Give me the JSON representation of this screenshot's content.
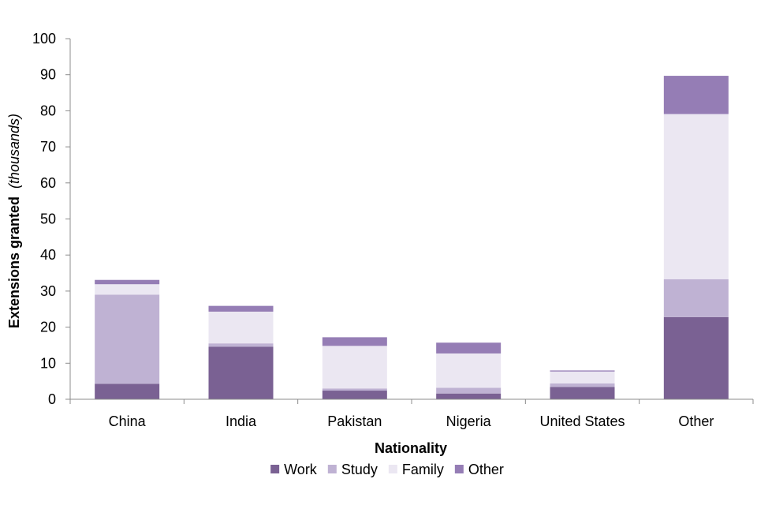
{
  "chart_data": {
    "type": "bar",
    "stacked": true,
    "categories": [
      "China",
      "India",
      "Pakistan",
      "Nigeria",
      "United States",
      "Other"
    ],
    "series": [
      {
        "name": "Work",
        "color": "#7a6193",
        "values": [
          4.3,
          14.6,
          2.4,
          1.6,
          3.4,
          22.8
        ]
      },
      {
        "name": "Study",
        "color": "#bfb2d3",
        "values": [
          24.7,
          0.9,
          0.6,
          1.6,
          1.0,
          10.5
        ]
      },
      {
        "name": "Family",
        "color": "#ebe7f2",
        "values": [
          2.9,
          8.8,
          11.8,
          9.5,
          3.3,
          45.8
        ]
      },
      {
        "name": "Other",
        "color": "#957db5",
        "values": [
          1.2,
          1.6,
          2.4,
          3.0,
          0.3,
          10.6
        ]
      }
    ],
    "ylim": [
      0,
      100
    ],
    "yticks": [
      "0",
      "10",
      "20",
      "30",
      "40",
      "50",
      "60",
      "70",
      "80",
      "90",
      "100"
    ],
    "xlabel": "Nationality",
    "ylabel_main": "Extensions granted",
    "ylabel_unit": "(thousands)",
    "grid": false,
    "legend_position": "bottom"
  }
}
